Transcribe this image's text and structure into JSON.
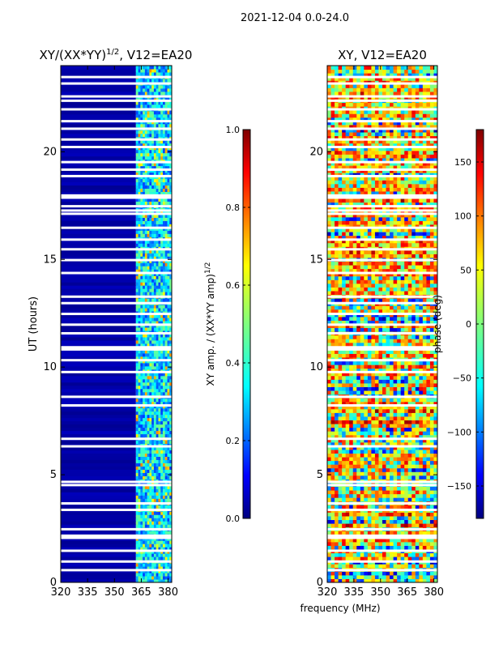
{
  "figure": {
    "suptitle": "2021-12-04 0.0-24.0",
    "shared_xlabel": "frequency (MHz)"
  },
  "colors": {
    "panel_background": "#000080",
    "gap_color": "#ffffff",
    "jet": [
      "#00007f",
      "#0000ff",
      "#007fff",
      "#00ffff",
      "#7fff7f",
      "#ffff00",
      "#ff7f00",
      "#ff0000",
      "#7f0000"
    ]
  },
  "chart_data": [
    {
      "type": "heatmap",
      "title_main": "XY/(XX*YY)",
      "title_sup": "1/2",
      "title_tail": ", V12=EA20",
      "xlabel": "",
      "ylabel": "UT (hours)",
      "xlim": [
        320,
        382
      ],
      "ylim": [
        0,
        24
      ],
      "xticks": [
        320,
        335,
        350,
        365,
        380
      ],
      "yticks": [
        0,
        5,
        10,
        15,
        20
      ],
      "description_bands": [
        {
          "x_range": [
            320,
            362
          ],
          "dominant_value": 0.02
        },
        {
          "x_range": [
            362,
            382
          ],
          "dominant_value": 0.35
        }
      ],
      "colorbar": {
        "label_main": "XY amp. / (XX*YY amp)",
        "label_sup": "1/2",
        "range": [
          0.0,
          1.0
        ],
        "ticks": [
          "0.0",
          "0.2",
          "0.4",
          "0.6",
          "0.8",
          "1.0"
        ],
        "tick_values": [
          0.0,
          0.2,
          0.4,
          0.6,
          0.8,
          1.0
        ]
      }
    },
    {
      "type": "heatmap",
      "title": "XY, V12=EA20",
      "xlabel": "frequency (MHz)",
      "ylabel": "",
      "xlim": [
        320,
        382
      ],
      "ylim": [
        0,
        24
      ],
      "xticks": [
        320,
        335,
        350,
        365,
        380
      ],
      "yticks": [
        0,
        5,
        10,
        15,
        20
      ],
      "colorbar": {
        "label": "phase (deg)",
        "range": [
          -180,
          180
        ],
        "ticks": [
          "150",
          "100",
          "50",
          "0",
          "−50",
          "−100",
          "−150"
        ],
        "tick_values": [
          150,
          100,
          50,
          0,
          -50,
          -100,
          -150
        ]
      }
    }
  ],
  "gaps_ut_hours": [
    0.55,
    0.95,
    1.45,
    2.05,
    2.15,
    2.45,
    3.35,
    3.65,
    4.5,
    4.65,
    6.3,
    6.65,
    8.2,
    8.6,
    9.75,
    10.3,
    10.8,
    10.9,
    11.55,
    11.95,
    12.45,
    12.95,
    13.25,
    14.35,
    14.95,
    15.45,
    15.9,
    16.45,
    17.1,
    17.25,
    17.45,
    17.85,
    17.95,
    18.85,
    19.15,
    19.5,
    20.2,
    20.55,
    21.05,
    21.4,
    21.95,
    22.35,
    22.55,
    23.15,
    23.45
  ]
}
